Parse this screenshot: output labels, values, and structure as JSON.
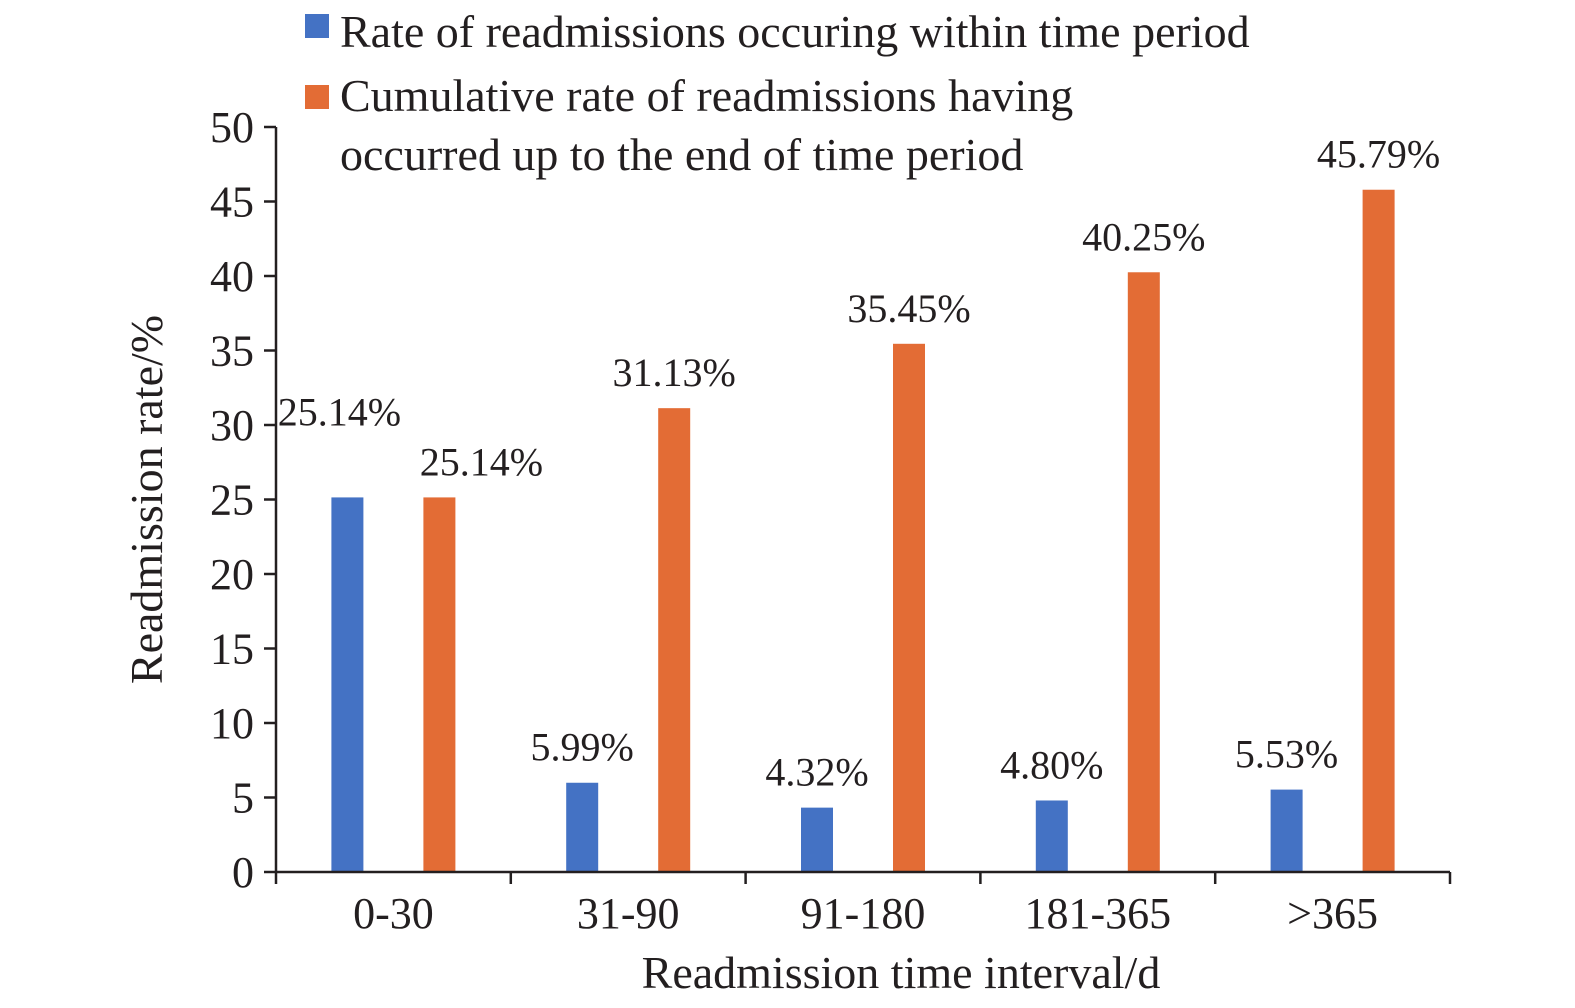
{
  "chart_data": {
    "type": "bar",
    "categories": [
      "0-30",
      "31-90",
      "91-180",
      "181-365",
      ">365"
    ],
    "series": [
      {
        "name": "Rate of readmissions occuring within time period",
        "values": [
          25.14,
          5.99,
          4.32,
          4.8,
          5.53
        ],
        "labels": [
          "25.14%",
          "5.99%",
          "4.32%",
          "4.80%",
          "5.53%"
        ],
        "color": "#4472c4"
      },
      {
        "name": "Cumulative rate of readmissions having occurred up to the end of time period",
        "name_lines": [
          "Cumulative rate of readmissions having",
          "occurred up to the end of time period"
        ],
        "values": [
          25.14,
          31.13,
          35.45,
          40.25,
          45.79
        ],
        "labels": [
          "25.14%",
          "31.13%",
          "35.45%",
          "40.25%",
          "45.79%"
        ],
        "color": "#e36c35"
      }
    ],
    "xlabel": "Readmission time interval/d",
    "ylabel": "Readmission rate/%",
    "ylim": [
      0,
      50
    ],
    "yticks": [
      0,
      5,
      10,
      15,
      20,
      25,
      30,
      35,
      40,
      45,
      50
    ],
    "grid": false,
    "legend_position": "top"
  }
}
